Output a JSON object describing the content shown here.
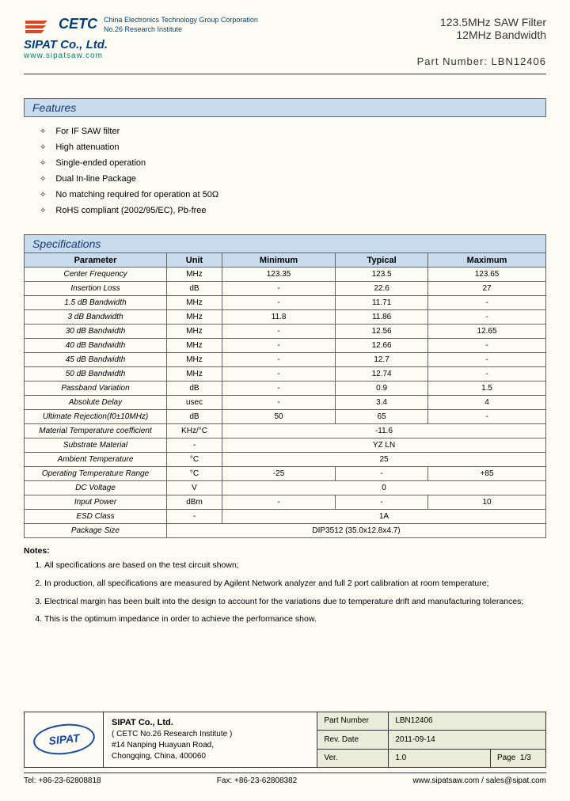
{
  "header": {
    "cetc": "CETC",
    "cetc_sub1": "China Electronics Technology Group Corporation",
    "cetc_sub2": "No.26 Research Institute",
    "company": "SIPAT Co., Ltd.",
    "website": "www.sipatsaw.com",
    "title1": "123.5MHz SAW Filter",
    "title2": "12MHz Bandwidth",
    "part_label": "Part Number: LBN12406"
  },
  "features": {
    "title": "Features",
    "items": [
      "For IF SAW filter",
      "High attenuation",
      "Single-ended operation",
      "Dual In-line Package",
      "No matching required for operation at 50Ω",
      "RoHS compliant (2002/95/EC), Pb-free"
    ]
  },
  "specs": {
    "title": "Specifications",
    "headers": [
      "Parameter",
      "Unit",
      "Minimum",
      "Typical",
      "Maximum"
    ],
    "rows": [
      {
        "p": "Center Frequency",
        "u": "MHz",
        "min": "123.35",
        "typ": "123.5",
        "max": "123.65"
      },
      {
        "p": "Insertion Loss",
        "u": "dB",
        "min": "-",
        "typ": "22.6",
        "max": "27"
      },
      {
        "p": "1.5 dB Bandwidth",
        "u": "MHz",
        "min": "-",
        "typ": "11.71",
        "max": "-"
      },
      {
        "p": "3 dB Bandwidth",
        "u": "MHz",
        "min": "11.8",
        "typ": "11.86",
        "max": "-"
      },
      {
        "p": "30 dB Bandwidth",
        "u": "MHz",
        "min": "-",
        "typ": "12.56",
        "max": "12.65"
      },
      {
        "p": "40 dB Bandwidth",
        "u": "MHz",
        "min": "-",
        "typ": "12.66",
        "max": "-"
      },
      {
        "p": "45 dB Bandwidth",
        "u": "MHz",
        "min": "-",
        "typ": "12.7",
        "max": "-"
      },
      {
        "p": "50 dB Bandwidth",
        "u": "MHz",
        "min": "-",
        "typ": "12.74",
        "max": "-"
      },
      {
        "p": "Passband Variation",
        "u": "dB",
        "min": "-",
        "typ": "0.9",
        "max": "1.5"
      },
      {
        "p": "Absolute Delay",
        "u": "usec",
        "min": "-",
        "typ": "3.4",
        "max": "4"
      },
      {
        "p": "Ultimate Rejection(f0±10MHz)",
        "u": "dB",
        "min": "50",
        "typ": "65",
        "max": "-"
      },
      {
        "p": "Material Temperature coefficient",
        "u": "KHz/°C",
        "span": "-11.6"
      },
      {
        "p": "Substrate Material",
        "u": "-",
        "span": "YZ LN"
      },
      {
        "p": "Ambient Temperature",
        "u": "°C",
        "span": "25"
      },
      {
        "p": "Operating Temperature Range",
        "u": "°C",
        "min": "-25",
        "typ": "-",
        "max": "+85"
      },
      {
        "p": "DC Voltage",
        "u": "V",
        "span": "0"
      },
      {
        "p": "Input Power",
        "u": "dBm",
        "min": "-",
        "typ": "-",
        "max": "10"
      },
      {
        "p": "ESD Class",
        "u": "-",
        "span": "1A"
      },
      {
        "p": "Package Size",
        "u": "",
        "span": "DIP3512   (35.0x12.8x4.7)",
        "unitspan": true
      }
    ]
  },
  "notes": {
    "title": "Notes:",
    "items": [
      "All specifications are based on the test circuit shown;",
      "In production, all specifications are measured by Agilent Network analyzer and full 2 port calibration at room temperature;",
      "Electrical margin has been built into the design to account for the variations due to temperature drift and manufacturing tolerances;",
      "This is the optimum impedance in order to achieve the performance show."
    ]
  },
  "footer": {
    "logo": "SIPAT",
    "company": "SIPAT Co., Ltd.",
    "addr1": "( CETC No.26 Research Institute )",
    "addr2": "#14 Nanping Huayuan Road,",
    "addr3": "Chongqing, China, 400060",
    "part_label": "Part Number",
    "part_val": "LBN12406",
    "rev_label": "Rev. Date",
    "rev_val": "2011-09-14",
    "ver_label": "Ver.",
    "ver_val": "1.0",
    "page_label": "Page",
    "page_val": "1/3",
    "tel": "Tel: +86-23-62808818",
    "fax": "Fax: +86-23-62808382",
    "web": "www.sipatsaw.com / sales@sipat.com"
  }
}
